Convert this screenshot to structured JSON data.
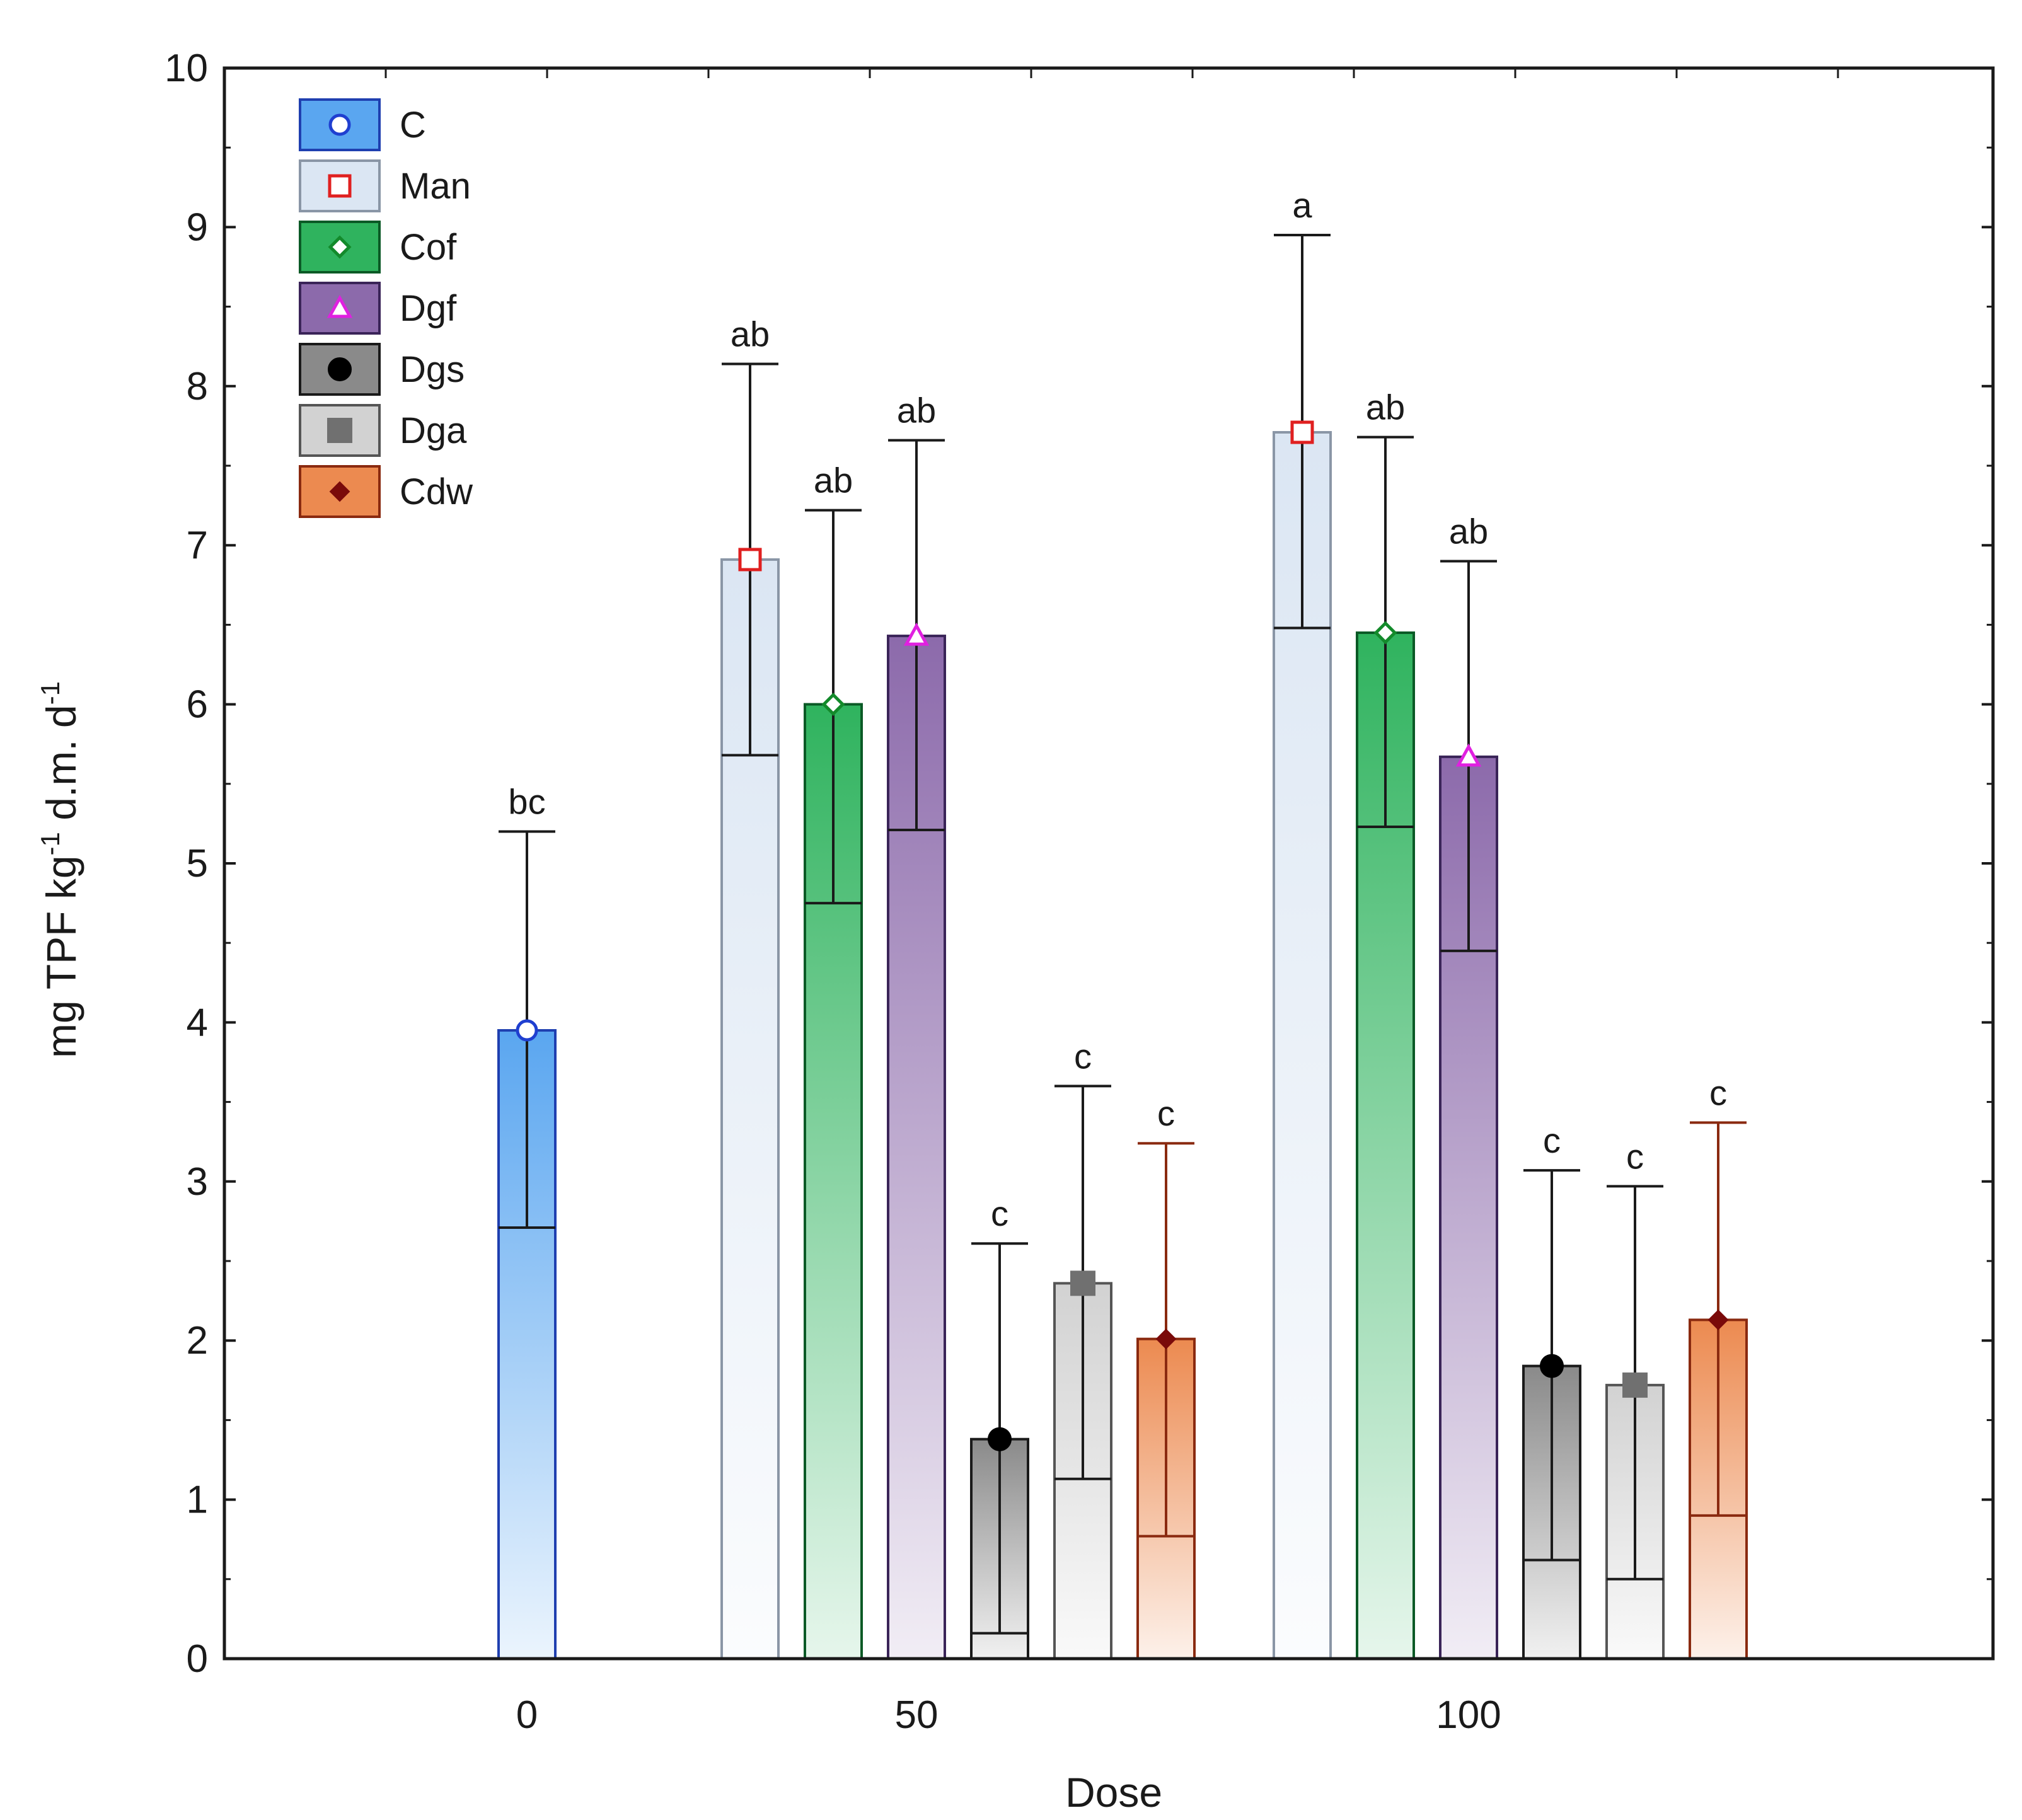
{
  "chart_data": {
    "type": "bar",
    "title": "",
    "xlabel": "Dose",
    "ylabel_parts": [
      "mg TPF kg",
      "-1",
      " d.m. d",
      "-1"
    ],
    "ylim": [
      0,
      10
    ],
    "y_ticks": [
      "0",
      "1",
      "2",
      "3",
      "4",
      "5",
      "6",
      "7",
      "8",
      "9",
      "10"
    ],
    "categories": [
      "0",
      "50",
      "100"
    ],
    "legend_position": "top-left",
    "series": [
      {
        "name": "C",
        "color": "#5aa6f0",
        "edge": "#1f3fb0",
        "marker": "circle-open",
        "marker_color": "#1f3fd0"
      },
      {
        "name": "Man",
        "color": "#dbe6f3",
        "edge": "#8a96a6",
        "marker": "square-open",
        "marker_color": "#e02020"
      },
      {
        "name": "Cof",
        "color": "#2fb35e",
        "edge": "#0b5a26",
        "marker": "diamond-open",
        "marker_color": "#138a2b"
      },
      {
        "name": "Dgf",
        "color": "#8c6aab",
        "edge": "#3a2458",
        "marker": "triangle-open",
        "marker_color": "#e020e0"
      },
      {
        "name": "Dgs",
        "color": "#8a8a8a",
        "edge": "#1a1a1a",
        "marker": "circle-filled",
        "marker_color": "#000000"
      },
      {
        "name": "Dga",
        "color": "#d2d2d2",
        "edge": "#555555",
        "marker": "square-filled",
        "marker_color": "#707070"
      },
      {
        "name": "Cdw",
        "color": "#ec8a50",
        "edge": "#8a2a10",
        "marker": "diamond-filled",
        "marker_color": "#7a0a0a"
      }
    ],
    "bars": [
      {
        "category": "0",
        "series": "C",
        "value": 3.95,
        "lower": 2.71,
        "upper": 5.2,
        "label": "bc"
      },
      {
        "category": "50",
        "series": "Man",
        "value": 6.91,
        "lower": 5.68,
        "upper": 8.14,
        "label": "ab"
      },
      {
        "category": "50",
        "series": "Cof",
        "value": 6.0,
        "lower": 4.75,
        "upper": 7.22,
        "label": "ab"
      },
      {
        "category": "50",
        "series": "Dgf",
        "value": 6.43,
        "lower": 5.21,
        "upper": 7.66,
        "label": "ab"
      },
      {
        "category": "50",
        "series": "Dgs",
        "value": 1.38,
        "lower": 0.16,
        "upper": 2.61,
        "label": "c"
      },
      {
        "category": "50",
        "series": "Dga",
        "value": 2.36,
        "lower": 1.13,
        "upper": 3.6,
        "label": "c"
      },
      {
        "category": "50",
        "series": "Cdw",
        "value": 2.01,
        "lower": 0.77,
        "upper": 3.24,
        "label": "c"
      },
      {
        "category": "100",
        "series": "Man",
        "value": 7.71,
        "lower": 6.48,
        "upper": 8.95,
        "label": "a"
      },
      {
        "category": "100",
        "series": "Cof",
        "value": 6.45,
        "lower": 5.23,
        "upper": 7.68,
        "label": "ab"
      },
      {
        "category": "100",
        "series": "Dgf",
        "value": 5.67,
        "lower": 4.45,
        "upper": 6.9,
        "label": "ab"
      },
      {
        "category": "100",
        "series": "Dgs",
        "value": 1.84,
        "lower": 0.62,
        "upper": 3.07,
        "label": "c"
      },
      {
        "category": "100",
        "series": "Dga",
        "value": 1.72,
        "lower": 0.5,
        "upper": 2.97,
        "label": "c"
      },
      {
        "category": "100",
        "series": "Cdw",
        "value": 2.13,
        "lower": 0.9,
        "upper": 3.37,
        "label": "c"
      }
    ]
  }
}
